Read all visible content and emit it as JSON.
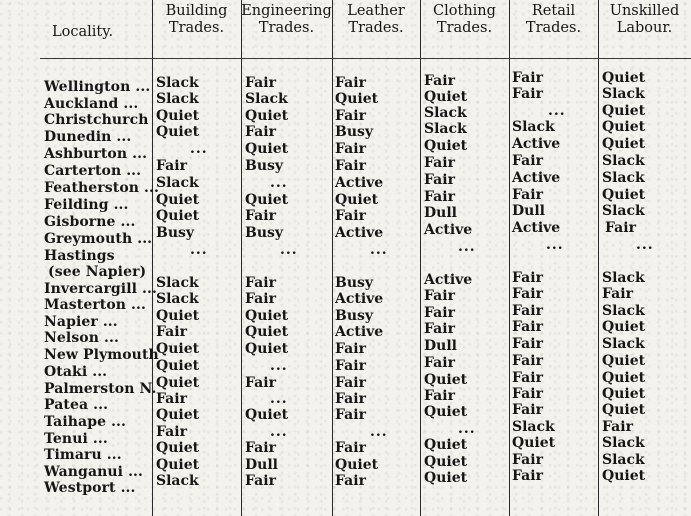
{
  "headers": {
    "locality": "Locality.",
    "building": "Building\nTrades.",
    "engineering": "Engineering\nTrades.",
    "leather": "Leather\nTrades.",
    "clothing": "Clothing\nTrades.",
    "retail": "Retail\nTrades.",
    "unskilled": "Unskilled\nLabour."
  },
  "rows": [
    {
      "locality": "Wellington ...",
      "building": "Slack",
      "engineering": "Fair",
      "leather": "Fair",
      "clothing": "Fair",
      "retail": "Fair",
      "unskilled": "Quiet"
    },
    {
      "locality": "Auckland ...",
      "building": "Slack",
      "engineering": "Slack",
      "leather": "Quiet",
      "clothing": "Quiet",
      "retail": "Fair",
      "unskilled": "Slack"
    },
    {
      "locality": "Christchurch",
      "building": "Quiet",
      "engineering": "Quiet",
      "leather": "Fair",
      "clothing": "Slack",
      "retail": "...",
      "unskilled": "Quiet"
    },
    {
      "locality": "Dunedin ...",
      "building": "Quiet",
      "engineering": "Fair",
      "leather": "Busy",
      "clothing": "Slack",
      "retail": "Slack",
      "unskilled": "Quiet"
    },
    {
      "locality": "Ashburton ...",
      "building": "...",
      "engineering": "Quiet",
      "leather": "Fair",
      "clothing": "Quiet",
      "retail": "Active",
      "unskilled": "Quiet"
    },
    {
      "locality": "Carterton ...",
      "building": "Fair",
      "engineering": "Busy",
      "leather": "Fair",
      "clothing": "Fair",
      "retail": "Fair",
      "unskilled": "Slack"
    },
    {
      "locality": "Featherston ...",
      "building": "Slack",
      "engineering": "...",
      "leather": "Active",
      "clothing": "Fair",
      "retail": "Active",
      "unskilled": "Slack"
    },
    {
      "locality": "Feilding ...",
      "building": "Quiet",
      "engineering": "Quiet",
      "leather": "Quiet",
      "clothing": "Fair",
      "retail": "Fair",
      "unskilled": "Quiet"
    },
    {
      "locality": "Gisborne ...",
      "building": "Quiet",
      "engineering": "Fair",
      "leather": "Fair",
      "clothing": "Dull",
      "retail": "Dull",
      "unskilled": "Slack"
    },
    {
      "locality": "Greymouth ...",
      "building": "Busy",
      "engineering": "Busy",
      "leather": "Active",
      "clothing": "Active",
      "retail": "Active",
      "unskilled": "Fair"
    },
    {
      "locality": "Hastings",
      "note": "(see Napier)",
      "building": "...",
      "engineering": "...",
      "leather": "...",
      "clothing": "...",
      "retail": "...",
      "unskilled": "..."
    },
    {
      "locality": "Invercargill ...",
      "building": "Slack",
      "engineering": "Fair",
      "leather": "Busy",
      "clothing": "Active",
      "retail": "Fair",
      "unskilled": "Slack"
    },
    {
      "locality": "Masterton ...",
      "building": "Slack",
      "engineering": "Fair",
      "leather": "Active",
      "clothing": "Fair",
      "retail": "Fair",
      "unskilled": "Fair"
    },
    {
      "locality": "Napier ...",
      "building": "Quiet",
      "engineering": "Quiet",
      "leather": "Busy",
      "clothing": "Fair",
      "retail": "Fair",
      "unskilled": "Slack"
    },
    {
      "locality": "Nelson ...",
      "building": "Fair",
      "engineering": "Quiet",
      "leather": "Active",
      "clothing": "Fair",
      "retail": "Fair",
      "unskilled": "Quiet"
    },
    {
      "locality": "New Plymouth",
      "building": "Quiet",
      "engineering": "Quiet",
      "leather": "Fair",
      "clothing": "Dull",
      "retail": "Fair",
      "unskilled": "Slack"
    },
    {
      "locality": "Otaki ...",
      "building": "Quiet",
      "engineering": "...",
      "leather": "Fair",
      "clothing": "Fair",
      "retail": "Fair",
      "unskilled": "Quiet"
    },
    {
      "locality": "Palmerston N.",
      "building": "Quiet",
      "engineering": "Fair",
      "leather": "Fair",
      "clothing": "Quiet",
      "retail": "Fair",
      "unskilled": "Quiet"
    },
    {
      "locality": "Patea ...",
      "building": "Fair",
      "engineering": "...",
      "leather": "Fair",
      "clothing": "Fair",
      "retail": "Fair",
      "unskilled": "Quiet"
    },
    {
      "locality": "Taihape ...",
      "building": "Quiet",
      "engineering": "Quiet",
      "leather": "Fair",
      "clothing": "Quiet",
      "retail": "Fair",
      "unskilled": "Quiet"
    },
    {
      "locality": "Tenui ...",
      "building": "Fair",
      "engineering": "...",
      "leather": "...",
      "clothing": "...",
      "retail": "Slack",
      "unskilled": "Fair"
    },
    {
      "locality": "Timaru ...",
      "building": "Quiet",
      "engineering": "Fair",
      "leather": "Fair",
      "clothing": "Quiet",
      "retail": "Quiet",
      "unskilled": "Slack"
    },
    {
      "locality": "Wanganui ...",
      "building": "Quiet",
      "engineering": "Dull",
      "leather": "Quiet",
      "clothing": "Quiet",
      "retail": "Fair",
      "unskilled": "Slack"
    },
    {
      "locality": "Westport ...",
      "building": "Slack",
      "engineering": "Fair",
      "leather": "Fair",
      "clothing": "Quiet",
      "retail": "Fair",
      "unskilled": "Quiet"
    }
  ]
}
